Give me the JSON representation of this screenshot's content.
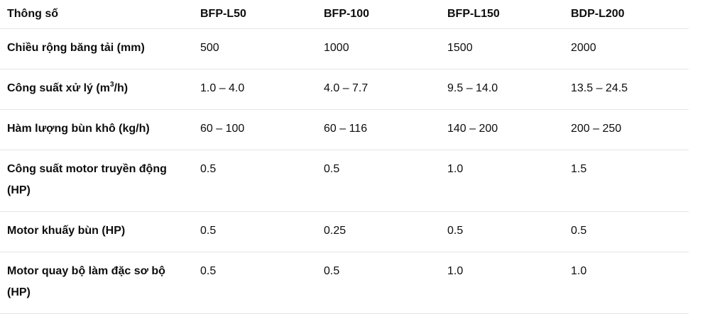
{
  "table": {
    "headers": [
      "Thông số",
      "BFP-L50",
      "BFP-100",
      "BFP-L150",
      "BDP-L200"
    ],
    "rows": [
      {
        "label": "Chiều rộng băng tải (mm)",
        "values": [
          "500",
          "1000",
          "1500",
          "2000"
        ]
      },
      {
        "label_before": "Công suất xử lý (m",
        "label_sup": "3",
        "label_after": "/h)",
        "values": [
          "1.0 – 4.0",
          "4.0 – 7.7",
          "9.5 – 14.0",
          "13.5 – 24.5"
        ]
      },
      {
        "label": "Hàm lượng bùn khô (kg/h)",
        "values": [
          "60 – 100",
          "60 – 116",
          "140 – 200",
          "200 – 250"
        ]
      },
      {
        "label": "Công suất motor truyền động (HP)",
        "values": [
          "0.5",
          "0.5",
          "1.0",
          "1.5"
        ]
      },
      {
        "label": "Motor khuấy bùn (HP)",
        "values": [
          "0.5",
          "0.25",
          "0.5",
          "0.5"
        ]
      },
      {
        "label": "Motor quay bộ làm đặc sơ bộ (HP)",
        "values": [
          "0.5",
          "0.5",
          "1.0",
          "1.0"
        ]
      }
    ]
  }
}
